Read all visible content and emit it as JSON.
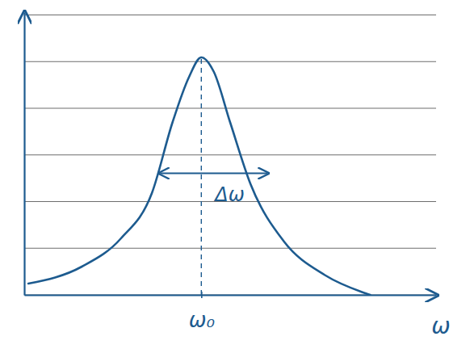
{
  "chart_data": {
    "type": "line",
    "x_label": "ω",
    "x": [
      0.1,
      1.4,
      2.35,
      3.1,
      3.6,
      4.0,
      4.3,
      4.6,
      5.0,
      5.5,
      6.3,
      7.3,
      8.2,
      8.4
    ],
    "values": [
      0.4,
      1.0,
      2.0,
      3.6,
      6.1,
      7.7,
      8.4,
      7.9,
      6.1,
      3.9,
      1.9,
      0.7,
      0.1,
      0.0
    ],
    "color": "#1d5b8f",
    "line_style": "solid",
    "xlim": [
      0,
      10
    ],
    "ylim": [
      0,
      10
    ],
    "xticks": [
      {
        "value": 4.3,
        "label": "ω₀"
      }
    ],
    "yticks": [
      0,
      1.65,
      3.3,
      4.95,
      6.6,
      8.25,
      9.9
    ],
    "grid": true,
    "tick_labels": "x",
    "annotations": [
      {
        "text": "Δω",
        "x": [
          3.3,
          5.9
        ],
        "y": 4.3
      }
    ]
  }
}
